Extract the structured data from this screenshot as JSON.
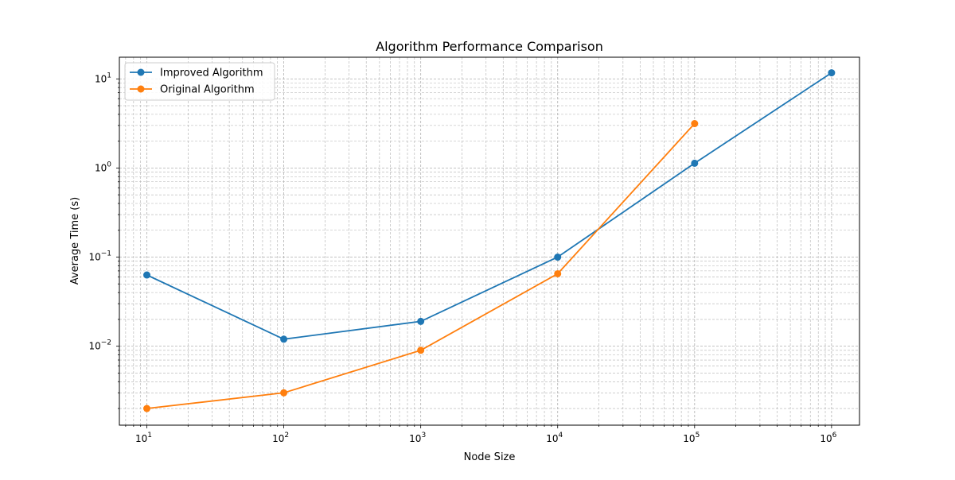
{
  "chart_data": {
    "type": "line",
    "title": "Algorithm Performance Comparison",
    "xlabel": "Node Size",
    "ylabel": "Average Time (s)",
    "xscale": "log",
    "yscale": "log",
    "xlim": [
      6.3,
      1600000
    ],
    "ylim": [
      0.0013,
      17.5
    ],
    "grid": true,
    "legend_position": "top-left",
    "x_ticks": [
      {
        "value": 10,
        "base": "10",
        "exp": "1"
      },
      {
        "value": 100,
        "base": "10",
        "exp": "2"
      },
      {
        "value": 1000,
        "base": "10",
        "exp": "3"
      },
      {
        "value": 10000,
        "base": "10",
        "exp": "4"
      },
      {
        "value": 100000,
        "base": "10",
        "exp": "5"
      },
      {
        "value": 1000000,
        "base": "10",
        "exp": "6"
      }
    ],
    "y_ticks": [
      {
        "value": 0.01,
        "base": "10",
        "exp": "−2"
      },
      {
        "value": 0.1,
        "base": "10",
        "exp": "−1"
      },
      {
        "value": 1,
        "base": "10",
        "exp": "0"
      },
      {
        "value": 10,
        "base": "10",
        "exp": "1"
      }
    ],
    "series": [
      {
        "name": "Improved Algorithm",
        "color": "#1f77b4",
        "x": [
          10,
          100,
          1000,
          10000,
          100000,
          1000000
        ],
        "y": [
          0.063,
          0.012,
          0.019,
          0.1,
          1.13,
          11.7
        ]
      },
      {
        "name": "Original Algorithm",
        "color": "#ff7f0e",
        "x": [
          10,
          100,
          1000,
          10000,
          100000
        ],
        "y": [
          0.002,
          0.003,
          0.009,
          0.065,
          3.15
        ]
      }
    ]
  }
}
